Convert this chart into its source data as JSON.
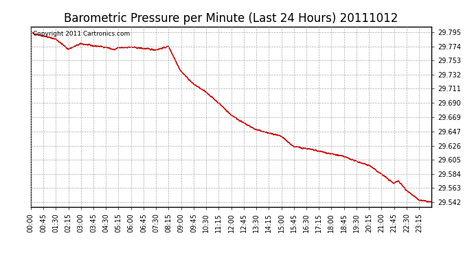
{
  "title": "Barometric Pressure per Minute (Last 24 Hours) 20111012",
  "copyright_text": "Copyright 2011 Cartronics.com",
  "line_color": "#cc0000",
  "background_color": "#ffffff",
  "plot_bg_color": "#ffffff",
  "grid_color": "#aaaaaa",
  "yticks": [
    29.542,
    29.563,
    29.584,
    29.605,
    29.626,
    29.647,
    29.669,
    29.69,
    29.711,
    29.732,
    29.753,
    29.774,
    29.795
  ],
  "ylim": [
    29.535,
    29.803
  ],
  "xtick_labels": [
    "00:00",
    "00:45",
    "01:30",
    "02:15",
    "03:00",
    "03:45",
    "04:30",
    "05:15",
    "06:00",
    "06:45",
    "07:30",
    "08:15",
    "09:00",
    "09:45",
    "10:30",
    "11:15",
    "12:00",
    "12:45",
    "13:30",
    "14:15",
    "15:00",
    "15:45",
    "16:30",
    "17:15",
    "18:00",
    "18:45",
    "19:30",
    "20:15",
    "21:00",
    "21:45",
    "22:30",
    "23:15"
  ],
  "title_fontsize": 12,
  "tick_fontsize": 7,
  "line_width": 1.2,
  "copyright_fontsize": 6.5
}
